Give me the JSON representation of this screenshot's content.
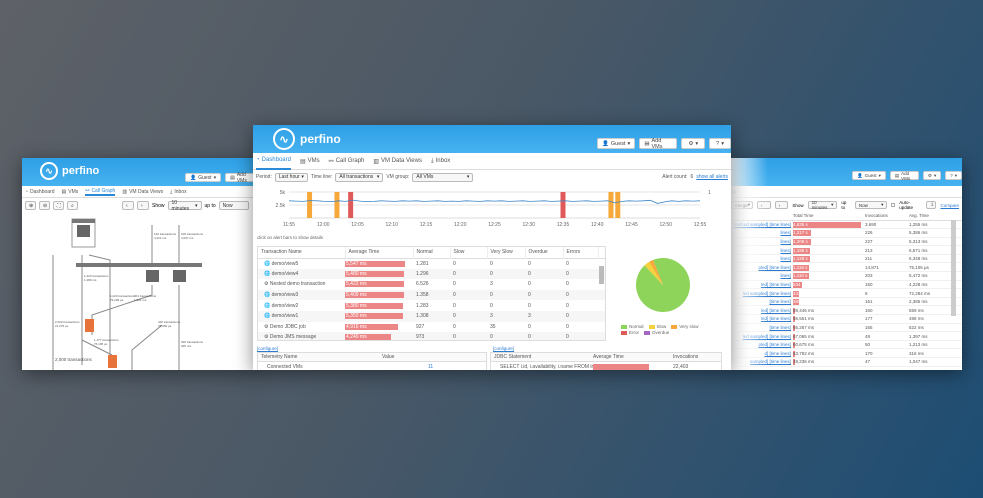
{
  "brand": "perfino",
  "header": {
    "guest": "Guest",
    "add_vms": "Add VMs"
  },
  "tabs": [
    "Dashboard",
    "VMs",
    "Call Graph",
    "VM Data Views",
    "Inbox"
  ],
  "colors": {
    "header": "#3aa8ec",
    "accent": "#2b8ad8",
    "bar": "#ec8585",
    "normal": "#8fd45a",
    "slow": "#f5d13b",
    "very_slow": "#f6a93a",
    "error": "#e15a5a",
    "overdue": "#a466c4"
  },
  "dashboard": {
    "filters": {
      "period_label": "Period:",
      "period": "Last hour",
      "timeline_label": "Time line:",
      "timeline": "All transactions",
      "vmgroup_label": "VM group:",
      "vmgroup": "All VMs"
    },
    "alert_count_label": "Alert count:",
    "alert_count": "6",
    "show_all_alerts": "show all alerts",
    "hint": "click on alert bars to show details",
    "chart": {
      "y_ticks": [
        "5k",
        "2.5k"
      ],
      "y2_ticks": [
        "1"
      ],
      "x_ticks": [
        "11:55",
        "12:00",
        "12:05",
        "12:10",
        "12:15",
        "12:20",
        "12:25",
        "12:30",
        "12:35",
        "12:40",
        "12:45",
        "12:50",
        "12:55"
      ],
      "ymax": 5000,
      "alerts": [
        {
          "minute": 3,
          "type": "slow"
        },
        {
          "minute": 7,
          "type": "slow"
        },
        {
          "minute": 9,
          "type": "error"
        },
        {
          "minute": 40,
          "type": "error"
        },
        {
          "minute": 47,
          "type": "slow"
        },
        {
          "minute": 48,
          "type": "slow"
        }
      ],
      "series": [
        3300,
        3250,
        3200,
        3350,
        3300,
        3200,
        3150,
        3300,
        3200,
        3450,
        3250,
        3150,
        3200,
        3300,
        3250,
        3200,
        3300,
        3250,
        3300,
        3200,
        3250,
        3300,
        3200,
        3250,
        3200,
        3300,
        3250,
        3200,
        3300,
        3250,
        3300,
        3200,
        3250,
        3300,
        3200,
        3250,
        3300,
        3200,
        3250,
        3300,
        3200,
        3250,
        3300,
        3200,
        3250,
        3300,
        2900,
        3200,
        3300,
        3250,
        3300,
        3400,
        2800,
        3100,
        3300,
        3200,
        3300,
        3250,
        3300
      ]
    },
    "table": {
      "columns": [
        "Transaction Name",
        "Average Time",
        "Normal",
        "Slow",
        "Very Slow",
        "Overdue",
        "Errors"
      ],
      "rows": [
        {
          "icon": "globe",
          "name": "demo/view5",
          "avg": "5,547 ms",
          "pct": 1.0,
          "normal": "1.281",
          "slow": "0",
          "vslow": "0",
          "overdue": "0",
          "errors": "0"
        },
        {
          "icon": "globe",
          "name": "demo/view4",
          "avg": "5,480 ms",
          "pct": 0.988,
          "normal": "1.296",
          "slow": "0",
          "vslow": "0",
          "overdue": "0",
          "errors": "0"
        },
        {
          "icon": "gear",
          "name": "Nested demo transaction",
          "avg": "5,422 ms",
          "pct": 0.977,
          "normal": "6.526",
          "slow": "0",
          "vslow": "3",
          "overdue": "0",
          "errors": "0"
        },
        {
          "icon": "globe",
          "name": "demo/view3",
          "avg": "5,409 ms",
          "pct": 0.975,
          "normal": "1.358",
          "slow": "0",
          "vslow": "0",
          "overdue": "0",
          "errors": "0"
        },
        {
          "icon": "globe",
          "name": "demo/view2",
          "avg": "5,380 ms",
          "pct": 0.97,
          "normal": "1.283",
          "slow": "0",
          "vslow": "0",
          "overdue": "0",
          "errors": "0"
        },
        {
          "icon": "globe",
          "name": "demo/view1",
          "avg": "5,350 ms",
          "pct": 0.964,
          "normal": "1.308",
          "slow": "0",
          "vslow": "3",
          "overdue": "3",
          "errors": "0"
        },
        {
          "icon": "gear",
          "name": "Demo JDBC job",
          "avg": "4,916 ms",
          "pct": 0.886,
          "normal": "927",
          "slow": "0",
          "vslow": "35",
          "overdue": "0",
          "errors": "0"
        },
        {
          "icon": "gear",
          "name": "Demo JMS message",
          "avg": "4,240 ms",
          "pct": 0.76,
          "normal": "973",
          "slow": "0",
          "vslow": "0",
          "overdue": "0",
          "errors": "0"
        }
      ]
    },
    "pie": {
      "slices": [
        {
          "name": "Normal",
          "value": 0.94
        },
        {
          "name": "Slow",
          "value": 0.035
        },
        {
          "name": "Very slow",
          "value": 0.025
        },
        {
          "name": "Error",
          "value": 0
        },
        {
          "name": "Overdue",
          "value": 0
        }
      ]
    },
    "configure": "[configure]",
    "telemetry": {
      "columns": [
        "Telemetry Name",
        "Value"
      ],
      "row": {
        "name": "Connected VMs",
        "value": "11"
      }
    },
    "jdbc": {
      "columns": [
        "JDBC Statement",
        "Average Time",
        "Invocations"
      ],
      "row": {
        "stmt": "SELECT i.id, i.availability, i.name FROM in",
        "avg": "",
        "inv": "22,403"
      }
    }
  },
  "callgraph": {
    "toolbar": {
      "show_label": "Show",
      "show": "10 minutes",
      "upto_label": "up to",
      "upto": "Now"
    },
    "labels": [
      "1,220 transactions",
      "1,280 ms",
      "140 transactions",
      "4,221 ms",
      "106 transactions",
      "4,037 ms",
      "1,220 transactions",
      "79,209 µs",
      "901 transactions",
      "1,201 ms",
      "2,200 transactions",
      "21,275 µs",
      "420 transactions",
      "79,350 µs",
      "1,177 transactions",
      "76,195 µs",
      "300 transactions",
      "305 ms",
      "2,000 transactions"
    ]
  },
  "hotspots": {
    "partial_tab": "ox",
    "toolbar": {
      "merge": "Merge",
      "show_label": "Show",
      "show": "10 minutes",
      "upto_label": "up to",
      "upto": "Now",
      "auto_update": "Auto-update",
      "compare": "Compare"
    },
    "columns": [
      "",
      "Total Time",
      "Invocations",
      "Avg. Time"
    ],
    "rows": [
      {
        "link": "method sampled] [time lines]",
        "total": "4,635 s",
        "pct": 1.0,
        "inv": "3,690",
        "avg": "1,255 ms"
      },
      {
        "link": "lines]",
        "total": "1,217 s",
        "pct": 0.26,
        "inv": "226",
        "avg": "5,386 ms"
      },
      {
        "link": "lines]",
        "total": "1,208 s",
        "pct": 0.26,
        "inv": "227",
        "avg": "5,313 ms"
      },
      {
        "link": "lines]",
        "total": "1,186 s",
        "pct": 0.256,
        "inv": "213",
        "avg": "5,571 ms"
      },
      {
        "link": "lines]",
        "total": "1,128 s",
        "pct": 0.243,
        "inv": "211",
        "avg": "5,348 ms"
      },
      {
        "link": "pled] [time lines]",
        "total": "1,118 s",
        "pct": 0.241,
        "inv": "14,871",
        "avg": "75,105 µs"
      },
      {
        "link": "lines]",
        "total": "1,110 s",
        "pct": 0.24,
        "inv": "203",
        "avg": "5,472 ms"
      },
      {
        "link": "led] [time lines]",
        "total": "634 s",
        "pct": 0.137,
        "inv": "150",
        "avg": "4,228 ms"
      },
      {
        "link": "led sampled] [time lines]",
        "total": "433 s",
        "pct": 0.093,
        "inv": "6",
        "avg": "72,284 ms"
      },
      {
        "link": "[time lines]",
        "total": "385 s",
        "pct": 0.083,
        "inv": "161",
        "avg": "2,385 ms"
      },
      {
        "link": "led] [time lines]",
        "total": "89,446 ms",
        "pct": 0.019,
        "inv": "160",
        "avg": "559 ms"
      },
      {
        "link": "led] [time lines]",
        "total": "86,551 ms",
        "pct": 0.019,
        "inv": "177",
        "avg": "488 ms"
      },
      {
        "link": "[time lines]",
        "total": "86,267 ms",
        "pct": 0.019,
        "inv": "165",
        "avg": "522 ms"
      },
      {
        "link": "led sampled] [time lines]",
        "total": "67,065 ms",
        "pct": 0.014,
        "inv": "48",
        "avg": "1,397 ms"
      },
      {
        "link": "pled] [time lines]",
        "total": "60,675 ms",
        "pct": 0.013,
        "inv": "50",
        "avg": "1,213 ms"
      },
      {
        "link": "d] [time lines]",
        "total": "53,792 ms",
        "pct": 0.012,
        "inv": "170",
        "avg": "316 ms"
      },
      {
        "link": "sampled] [time lines]",
        "total": "49,236 ms",
        "pct": 0.011,
        "inv": "47",
        "avg": "1,047 ms"
      }
    ]
  }
}
